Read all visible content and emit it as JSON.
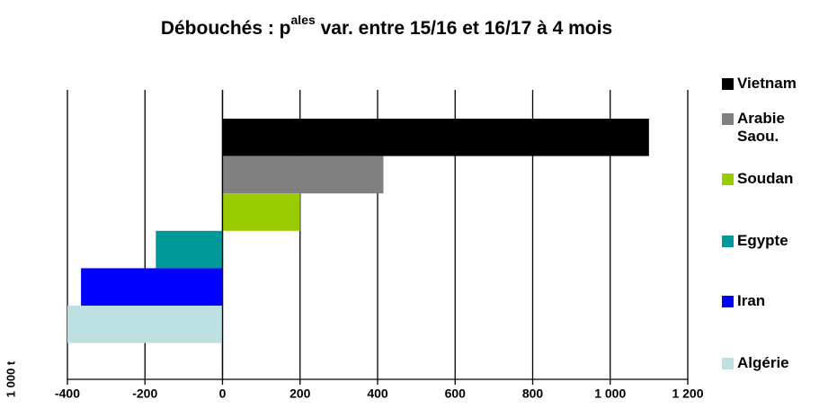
{
  "chart_data": {
    "type": "bar",
    "orientation": "horizontal",
    "title": [
      "Débouchés : p",
      "ales",
      " var. entre 15/16 et 16/17 à 4 mois"
    ],
    "y_label": "1 000 t",
    "series": [
      {
        "name": "Vietnam",
        "color": "#000000",
        "values": [
          1100
        ]
      },
      {
        "name": "Arabie Saou.",
        "color": "#808080",
        "values": [
          415
        ]
      },
      {
        "name": "Soudan",
        "color": "#99cc00",
        "values": [
          200
        ]
      },
      {
        "name": "Egypte",
        "color": "#009999",
        "values": [
          -172
        ]
      },
      {
        "name": "Iran",
        "color": "#0000ff",
        "values": [
          -365
        ]
      },
      {
        "name": "Algérie",
        "color": "#bde0e3",
        "values": [
          -400
        ]
      }
    ],
    "xlim": [
      -400,
      1200
    ],
    "xticks": [
      -400,
      -200,
      0,
      200,
      400,
      600,
      800,
      {
        "value": 1000,
        "label": "1 000"
      },
      {
        "value": 1200,
        "label": "1 200"
      }
    ],
    "grid": true,
    "legend": "right"
  }
}
